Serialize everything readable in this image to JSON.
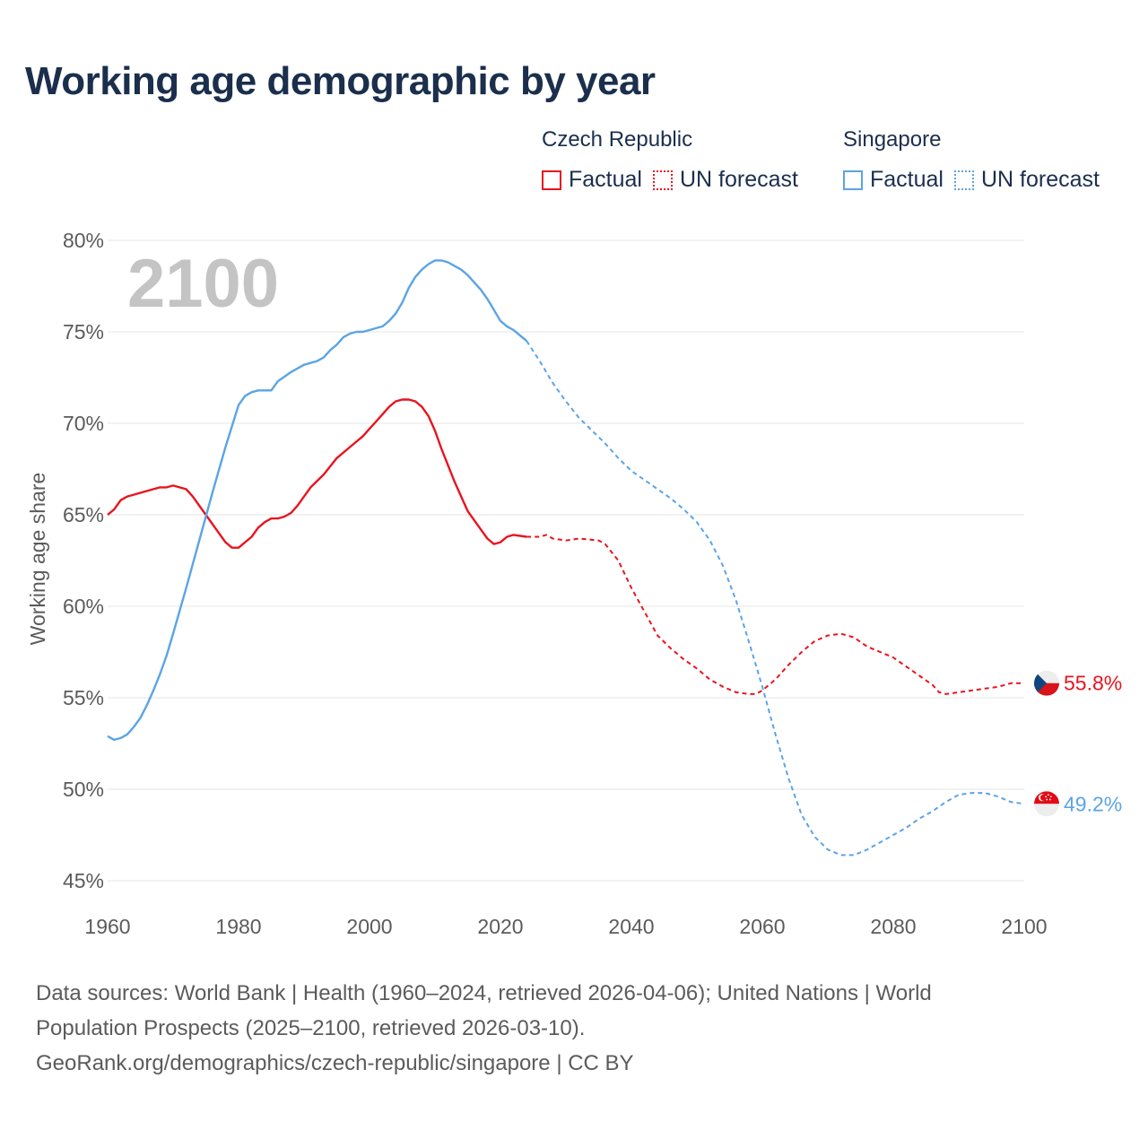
{
  "title": "Working age demographic by year",
  "legend": {
    "groups": [
      {
        "name": "Czech Republic",
        "color": "#e8141e",
        "factual_label": "Factual",
        "forecast_label": "UN forecast"
      },
      {
        "name": "Singapore",
        "color": "#5ba4e5",
        "factual_label": "Factual",
        "forecast_label": "UN forecast"
      }
    ]
  },
  "year_watermark": "2100",
  "footer": {
    "line1": "Data sources: World Bank | Health (1960–2024, retrieved 2026-04-06); United Nations | World",
    "line2": "Population Prospects (2025–2100, retrieved 2026-03-10).",
    "line3": "GeoRank.org/demographics/czech-republic/singapore | CC BY"
  },
  "chart_data": {
    "type": "line",
    "title": "Working age demographic by year",
    "xlabel": "",
    "ylabel": "Working age share",
    "xlim": [
      1960,
      2100
    ],
    "ylim": [
      45,
      80
    ],
    "x_ticks": [
      1960,
      1980,
      2000,
      2020,
      2040,
      2060,
      2080,
      2100
    ],
    "y_ticks": [
      45,
      50,
      55,
      60,
      65,
      70,
      75,
      80
    ],
    "y_tick_labels": [
      "45%",
      "50%",
      "55%",
      "60%",
      "65%",
      "70%",
      "75%",
      "80%"
    ],
    "grid": true,
    "legend_position": "top-right",
    "factual_end_year": 2024,
    "series": [
      {
        "name": "Czech Republic",
        "color": "#e8141e",
        "end_label": "55.8%",
        "flag": "czech",
        "points": [
          [
            1960,
            65.0
          ],
          [
            1961,
            65.3
          ],
          [
            1962,
            65.8
          ],
          [
            1963,
            66.0
          ],
          [
            1965,
            66.2
          ],
          [
            1967,
            66.4
          ],
          [
            1968,
            66.5
          ],
          [
            1969,
            66.5
          ],
          [
            1970,
            66.6
          ],
          [
            1972,
            66.4
          ],
          [
            1973,
            66.0
          ],
          [
            1975,
            65.0
          ],
          [
            1977,
            64.0
          ],
          [
            1978,
            63.5
          ],
          [
            1979,
            63.2
          ],
          [
            1980,
            63.2
          ],
          [
            1982,
            63.8
          ],
          [
            1983,
            64.3
          ],
          [
            1984,
            64.6
          ],
          [
            1985,
            64.8
          ],
          [
            1986,
            64.8
          ],
          [
            1987,
            64.9
          ],
          [
            1988,
            65.1
          ],
          [
            1989,
            65.5
          ],
          [
            1990,
            66.0
          ],
          [
            1991,
            66.5
          ],
          [
            1993,
            67.2
          ],
          [
            1995,
            68.1
          ],
          [
            1997,
            68.7
          ],
          [
            1999,
            69.3
          ],
          [
            2000,
            69.7
          ],
          [
            2001,
            70.1
          ],
          [
            2002,
            70.5
          ],
          [
            2003,
            70.9
          ],
          [
            2004,
            71.2
          ],
          [
            2005,
            71.3
          ],
          [
            2006,
            71.3
          ],
          [
            2007,
            71.2
          ],
          [
            2008,
            70.9
          ],
          [
            2009,
            70.4
          ],
          [
            2010,
            69.6
          ],
          [
            2011,
            68.6
          ],
          [
            2013,
            66.8
          ],
          [
            2015,
            65.2
          ],
          [
            2017,
            64.2
          ],
          [
            2018,
            63.7
          ],
          [
            2019,
            63.4
          ],
          [
            2020,
            63.5
          ],
          [
            2021,
            63.8
          ],
          [
            2022,
            63.9
          ],
          [
            2024,
            63.8
          ],
          [
            2026,
            63.8
          ],
          [
            2027,
            63.9
          ],
          [
            2028,
            63.7
          ],
          [
            2030,
            63.6
          ],
          [
            2032,
            63.7
          ],
          [
            2035,
            63.6
          ],
          [
            2036,
            63.4
          ],
          [
            2038,
            62.5
          ],
          [
            2040,
            61.0
          ],
          [
            2042,
            59.7
          ],
          [
            2044,
            58.4
          ],
          [
            2046,
            57.7
          ],
          [
            2048,
            57.1
          ],
          [
            2050,
            56.6
          ],
          [
            2052,
            56.0
          ],
          [
            2054,
            55.6
          ],
          [
            2056,
            55.3
          ],
          [
            2058,
            55.2
          ],
          [
            2059,
            55.2
          ],
          [
            2060,
            55.4
          ],
          [
            2062,
            56.0
          ],
          [
            2064,
            56.8
          ],
          [
            2066,
            57.5
          ],
          [
            2068,
            58.1
          ],
          [
            2070,
            58.4
          ],
          [
            2072,
            58.5
          ],
          [
            2074,
            58.3
          ],
          [
            2076,
            57.8
          ],
          [
            2078,
            57.5
          ],
          [
            2080,
            57.2
          ],
          [
            2082,
            56.7
          ],
          [
            2084,
            56.2
          ],
          [
            2086,
            55.7
          ],
          [
            2087,
            55.3
          ],
          [
            2088,
            55.2
          ],
          [
            2090,
            55.3
          ],
          [
            2092,
            55.4
          ],
          [
            2094,
            55.5
          ],
          [
            2096,
            55.6
          ],
          [
            2098,
            55.8
          ],
          [
            2100,
            55.8
          ]
        ]
      },
      {
        "name": "Singapore",
        "color": "#5ba4e5",
        "end_label": "49.2%",
        "flag": "singapore",
        "points": [
          [
            1960,
            52.9
          ],
          [
            1961,
            52.7
          ],
          [
            1962,
            52.8
          ],
          [
            1963,
            53.0
          ],
          [
            1964,
            53.4
          ],
          [
            1965,
            53.9
          ],
          [
            1966,
            54.6
          ],
          [
            1967,
            55.4
          ],
          [
            1968,
            56.3
          ],
          [
            1969,
            57.3
          ],
          [
            1970,
            58.5
          ],
          [
            1972,
            61.0
          ],
          [
            1974,
            63.6
          ],
          [
            1976,
            66.2
          ],
          [
            1978,
            68.7
          ],
          [
            1980,
            71.0
          ],
          [
            1981,
            71.5
          ],
          [
            1982,
            71.7
          ],
          [
            1983,
            71.8
          ],
          [
            1985,
            71.8
          ],
          [
            1986,
            72.3
          ],
          [
            1988,
            72.8
          ],
          [
            1989,
            73.0
          ],
          [
            1990,
            73.2
          ],
          [
            1992,
            73.4
          ],
          [
            1993,
            73.6
          ],
          [
            1994,
            74.0
          ],
          [
            1995,
            74.3
          ],
          [
            1996,
            74.7
          ],
          [
            1997,
            74.9
          ],
          [
            1998,
            75.0
          ],
          [
            1999,
            75.0
          ],
          [
            2000,
            75.1
          ],
          [
            2001,
            75.2
          ],
          [
            2002,
            75.3
          ],
          [
            2003,
            75.6
          ],
          [
            2004,
            76.0
          ],
          [
            2005,
            76.6
          ],
          [
            2006,
            77.4
          ],
          [
            2007,
            78.0
          ],
          [
            2008,
            78.4
          ],
          [
            2009,
            78.7
          ],
          [
            2010,
            78.9
          ],
          [
            2011,
            78.9
          ],
          [
            2012,
            78.8
          ],
          [
            2013,
            78.6
          ],
          [
            2014,
            78.4
          ],
          [
            2015,
            78.1
          ],
          [
            2016,
            77.7
          ],
          [
            2017,
            77.3
          ],
          [
            2018,
            76.8
          ],
          [
            2019,
            76.2
          ],
          [
            2020,
            75.6
          ],
          [
            2021,
            75.3
          ],
          [
            2022,
            75.1
          ],
          [
            2023,
            74.8
          ],
          [
            2024,
            74.5
          ],
          [
            2026,
            73.4
          ],
          [
            2028,
            72.2
          ],
          [
            2030,
            71.2
          ],
          [
            2032,
            70.3
          ],
          [
            2034,
            69.6
          ],
          [
            2036,
            68.9
          ],
          [
            2038,
            68.1
          ],
          [
            2040,
            67.4
          ],
          [
            2042,
            66.9
          ],
          [
            2044,
            66.4
          ],
          [
            2046,
            65.9
          ],
          [
            2048,
            65.3
          ],
          [
            2050,
            64.6
          ],
          [
            2052,
            63.6
          ],
          [
            2054,
            62.2
          ],
          [
            2056,
            60.3
          ],
          [
            2058,
            58.0
          ],
          [
            2060,
            55.6
          ],
          [
            2062,
            53.0
          ],
          [
            2064,
            50.6
          ],
          [
            2066,
            48.6
          ],
          [
            2068,
            47.4
          ],
          [
            2070,
            46.7
          ],
          [
            2072,
            46.4
          ],
          [
            2074,
            46.4
          ],
          [
            2076,
            46.7
          ],
          [
            2078,
            47.1
          ],
          [
            2080,
            47.5
          ],
          [
            2082,
            47.9
          ],
          [
            2084,
            48.4
          ],
          [
            2086,
            48.8
          ],
          [
            2088,
            49.3
          ],
          [
            2090,
            49.7
          ],
          [
            2092,
            49.8
          ],
          [
            2094,
            49.8
          ],
          [
            2096,
            49.6
          ],
          [
            2098,
            49.3
          ],
          [
            2100,
            49.2
          ]
        ]
      }
    ]
  }
}
